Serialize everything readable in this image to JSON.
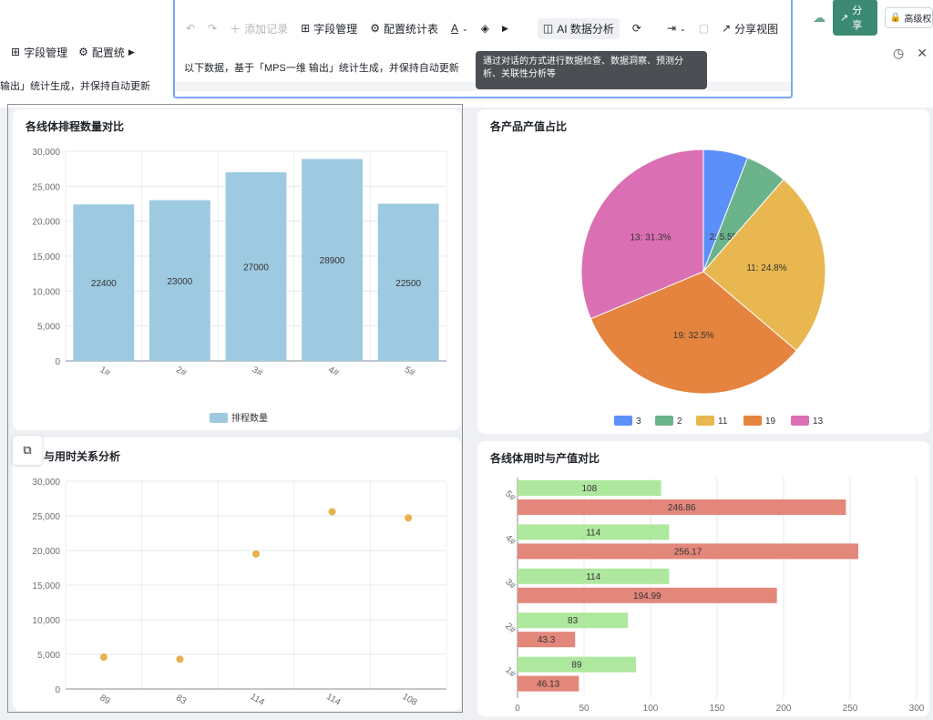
{
  "background": {
    "left_toolbar": {
      "fields_label": "字段管理",
      "config_label": "配置统"
    },
    "left_text": "输出」统计生成，并保持自动更新",
    "share_label": "分享",
    "advanced_label": "高级权"
  },
  "float_window": {
    "toolbar": {
      "add_record": "添加记录",
      "field_manage": "字段管理",
      "config_stats": "配置统计表",
      "ai_analysis": "AI 数据分析",
      "share_view": "分享视图"
    },
    "description": "以下数据，基于「MPS一维 输出」统计生成，并保持自动更新",
    "tooltip": "通过对话的方式进行数据检查、数据洞察、预测分析、关联性分析等"
  },
  "colors": {
    "bar": "#9ecae1",
    "scatter": "#e8b14e",
    "hbar_time": "#aee89e",
    "hbar_value": "#e3877a",
    "pie": [
      "#5b8ff9",
      "#6bb38a",
      "#e8b750",
      "#e5843f",
      "#db6fb3"
    ],
    "accent_share": "#3c8a73"
  },
  "chart_data": [
    {
      "type": "bar",
      "title": "各线体排程数量对比",
      "categories": [
        "1#",
        "2#",
        "3#",
        "4#",
        "5#"
      ],
      "series": [
        {
          "name": "排程数量",
          "values": [
            22400,
            23000,
            27000,
            28900,
            22500
          ]
        }
      ],
      "ylim": [
        0,
        30000
      ],
      "yticks": [
        "0",
        "5,000",
        "10,000",
        "15,000",
        "20,000",
        "25,000",
        "30,000"
      ],
      "grid": true,
      "legend": "bottom"
    },
    {
      "type": "pie",
      "title": "各产品产值占比",
      "slices": [
        {
          "label": "3",
          "value": 5.9
        },
        {
          "label": "2",
          "value": 5.5
        },
        {
          "label": "11",
          "value": 24.8
        },
        {
          "label": "19",
          "value": 32.5
        },
        {
          "label": "13",
          "value": 31.3
        }
      ],
      "slice_labels": {
        "2": "2: 5.5%",
        "11": "11: 24.8%",
        "19": "19: 32.5%",
        "13": "13: 31.3%"
      },
      "legend": "bottom"
    },
    {
      "type": "scatter",
      "title": "与用时关系分析",
      "x_labels": [
        "89",
        "83",
        "114",
        "114",
        "108"
      ],
      "y": [
        4600,
        4300,
        19500,
        25600,
        24700
      ],
      "ylim": [
        0,
        30000
      ],
      "yticks": [
        "0",
        "5,000",
        "10,000",
        "15,000",
        "20,000",
        "25,000",
        "30,000"
      ],
      "grid": true
    },
    {
      "type": "bar",
      "orientation": "horizontal",
      "title": "各线体用时与产值对比",
      "categories": [
        "5#",
        "4#",
        "3#",
        "2#",
        "1#"
      ],
      "series": [
        {
          "values": [
            108,
            114,
            114,
            83,
            89
          ]
        },
        {
          "values": [
            246.86,
            256.17,
            194.99,
            43.3,
            46.13
          ]
        }
      ],
      "xlim": [
        0,
        300
      ],
      "xticks": [
        "0",
        "50",
        "100",
        "150",
        "200",
        "250",
        "300"
      ],
      "grid": true
    }
  ]
}
